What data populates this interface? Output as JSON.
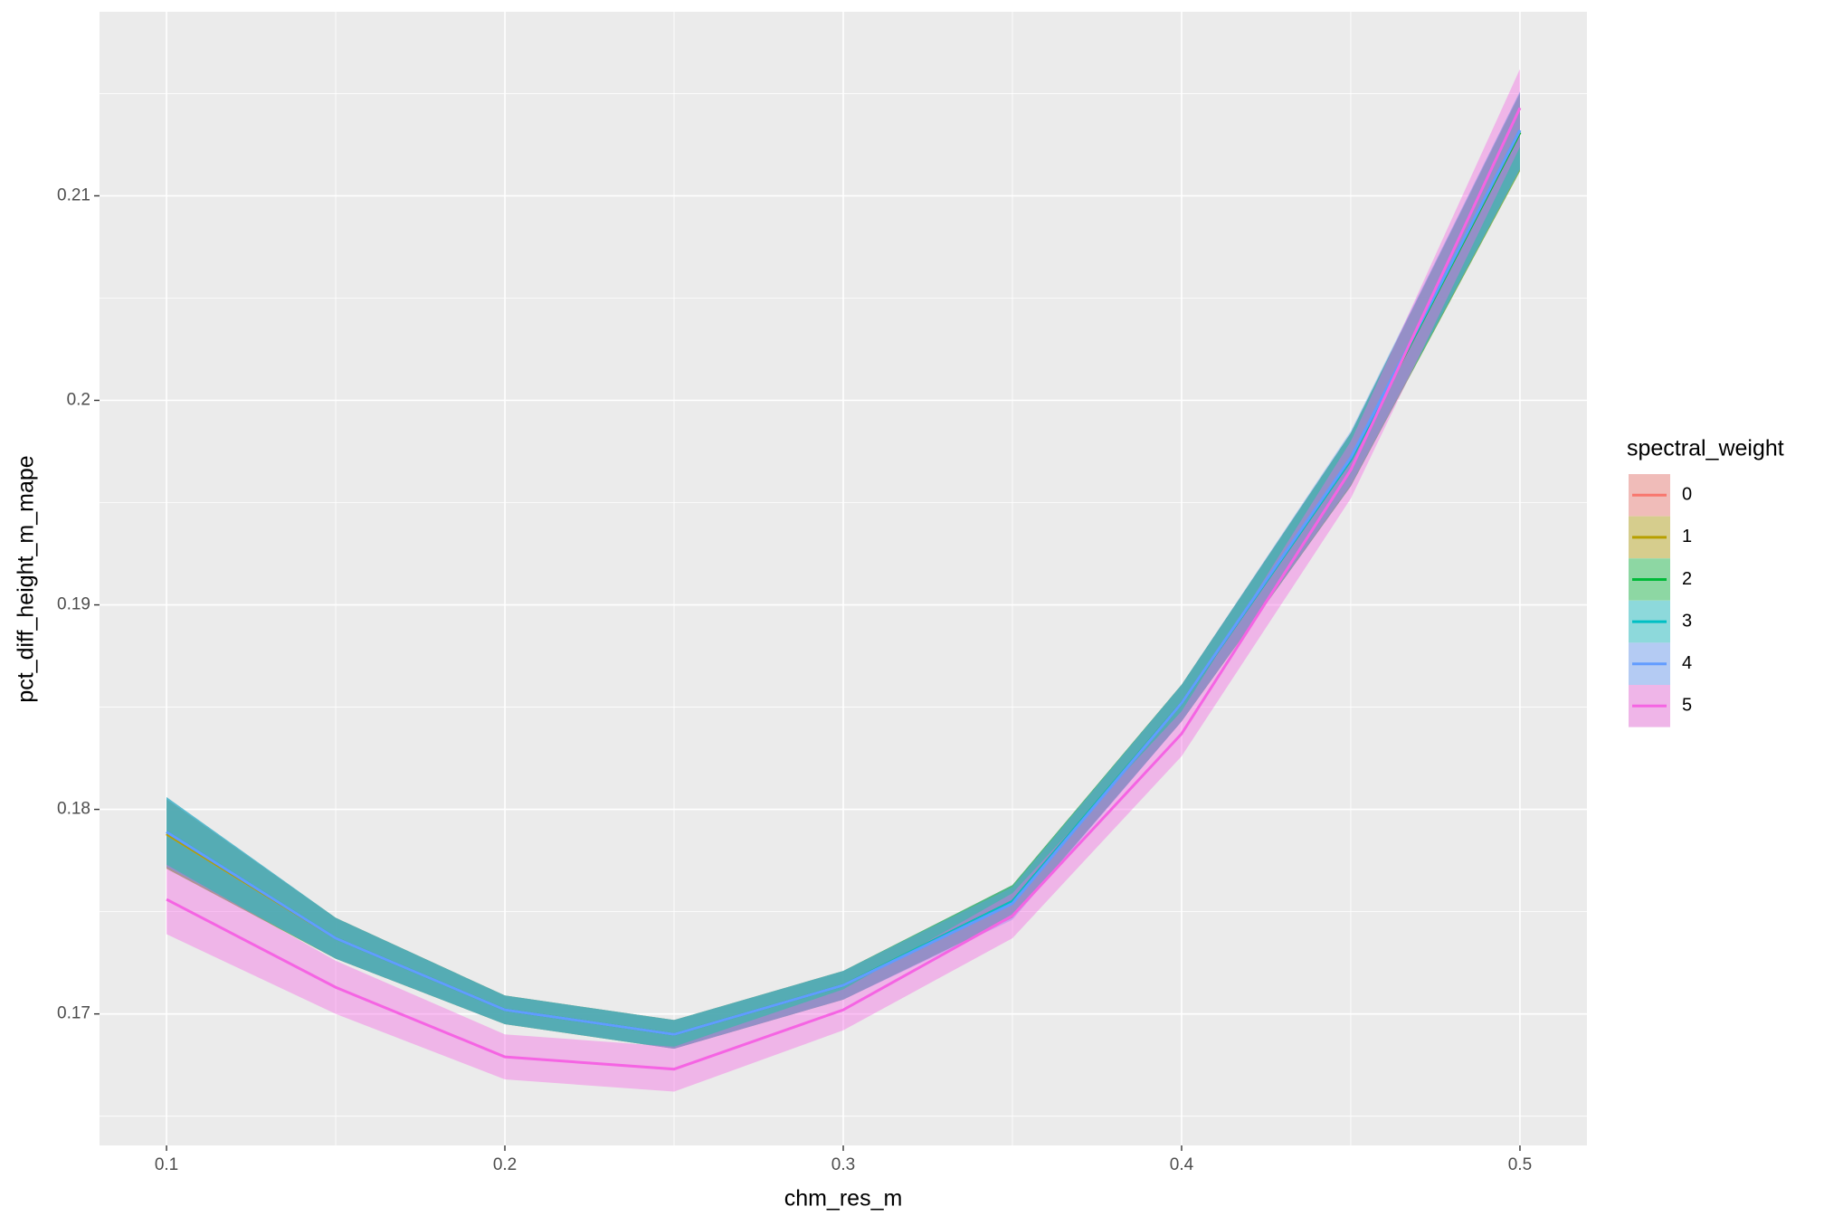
{
  "chart_data": {
    "type": "smooth",
    "x_label": "chm_res_m",
    "y_label": "pct_diff_height_m_mape",
    "legend_title": "spectral_weight",
    "legend_position": "right",
    "x": [
      0.1,
      0.15,
      0.2,
      0.25,
      0.3,
      0.35,
      0.4,
      0.45,
      0.5
    ],
    "series": [
      {
        "name": "0",
        "color": "#F8766D",
        "values": [
          0.1788,
          0.1737,
          0.1702,
          0.169,
          0.1714,
          0.1755,
          0.1852,
          0.1971,
          0.2131
        ],
        "lower": [
          0.1771,
          0.1727,
          0.1695,
          0.1683,
          0.1707,
          0.1747,
          0.1843,
          0.1958,
          0.2112
        ],
        "upper": [
          0.1805,
          0.1747,
          0.1709,
          0.1697,
          0.1721,
          0.1763,
          0.1861,
          0.1984,
          0.215
        ]
      },
      {
        "name": "1",
        "color": "#B79F00",
        "values": [
          0.1788,
          0.1737,
          0.1702,
          0.169,
          0.1714,
          0.1755,
          0.1852,
          0.1971,
          0.2131
        ],
        "lower": [
          0.1771,
          0.1727,
          0.1695,
          0.1683,
          0.1707,
          0.1747,
          0.1843,
          0.1958,
          0.2112
        ],
        "upper": [
          0.1805,
          0.1747,
          0.1709,
          0.1697,
          0.1721,
          0.1763,
          0.1861,
          0.1984,
          0.215
        ]
      },
      {
        "name": "2",
        "color": "#00BA38",
        "values": [
          0.1789,
          0.1737,
          0.1702,
          0.169,
          0.1714,
          0.1755,
          0.1852,
          0.1971,
          0.2131
        ],
        "lower": [
          0.1771,
          0.1727,
          0.1695,
          0.1683,
          0.1707,
          0.1747,
          0.1843,
          0.1958,
          0.2112
        ],
        "upper": [
          0.1806,
          0.1747,
          0.1709,
          0.1697,
          0.1721,
          0.1763,
          0.1861,
          0.1984,
          0.215
        ]
      },
      {
        "name": "3",
        "color": "#00BFC4",
        "values": [
          0.1789,
          0.1737,
          0.1702,
          0.169,
          0.1714,
          0.1755,
          0.1852,
          0.1971,
          0.2132
        ],
        "lower": [
          0.1772,
          0.1727,
          0.1695,
          0.1683,
          0.1707,
          0.1747,
          0.1843,
          0.1958,
          0.2113
        ],
        "upper": [
          0.1806,
          0.1747,
          0.1709,
          0.1697,
          0.1721,
          0.1763,
          0.1861,
          0.1984,
          0.2151
        ]
      },
      {
        "name": "4",
        "color": "#619CFF",
        "values": [
          0.1789,
          0.1737,
          0.1702,
          0.169,
          0.1714,
          0.1754,
          0.1852,
          0.1972,
          0.2132
        ],
        "lower": [
          0.1772,
          0.1727,
          0.1695,
          0.1683,
          0.1707,
          0.1746,
          0.1843,
          0.1959,
          0.2113
        ],
        "upper": [
          0.1806,
          0.1747,
          0.1709,
          0.1697,
          0.1721,
          0.1762,
          0.1861,
          0.1985,
          0.2151
        ]
      },
      {
        "name": "5",
        "color": "#F564E3",
        "values": [
          0.1756,
          0.1713,
          0.1679,
          0.1673,
          0.1702,
          0.1748,
          0.1837,
          0.1966,
          0.2143
        ],
        "lower": [
          0.1739,
          0.17,
          0.1668,
          0.1662,
          0.1692,
          0.1737,
          0.1826,
          0.1952,
          0.2124
        ],
        "upper": [
          0.1773,
          0.1726,
          0.169,
          0.1684,
          0.1712,
          0.1759,
          0.1848,
          0.198,
          0.2162
        ]
      }
    ],
    "xlim": [
      0.0802,
      0.5198
    ],
    "ylim": [
      0.16357,
      0.219
    ],
    "xticks": [
      0.1,
      0.2,
      0.3,
      0.4,
      0.5
    ],
    "yticks": [
      0.17,
      0.18,
      0.19,
      0.2,
      0.21
    ],
    "minor_xticks": [
      0.15,
      0.25,
      0.35,
      0.45
    ],
    "minor_yticks": [
      0.165,
      0.175,
      0.185,
      0.195,
      0.205,
      0.215
    ],
    "grid": true,
    "ribbon_alpha": 0.4
  }
}
